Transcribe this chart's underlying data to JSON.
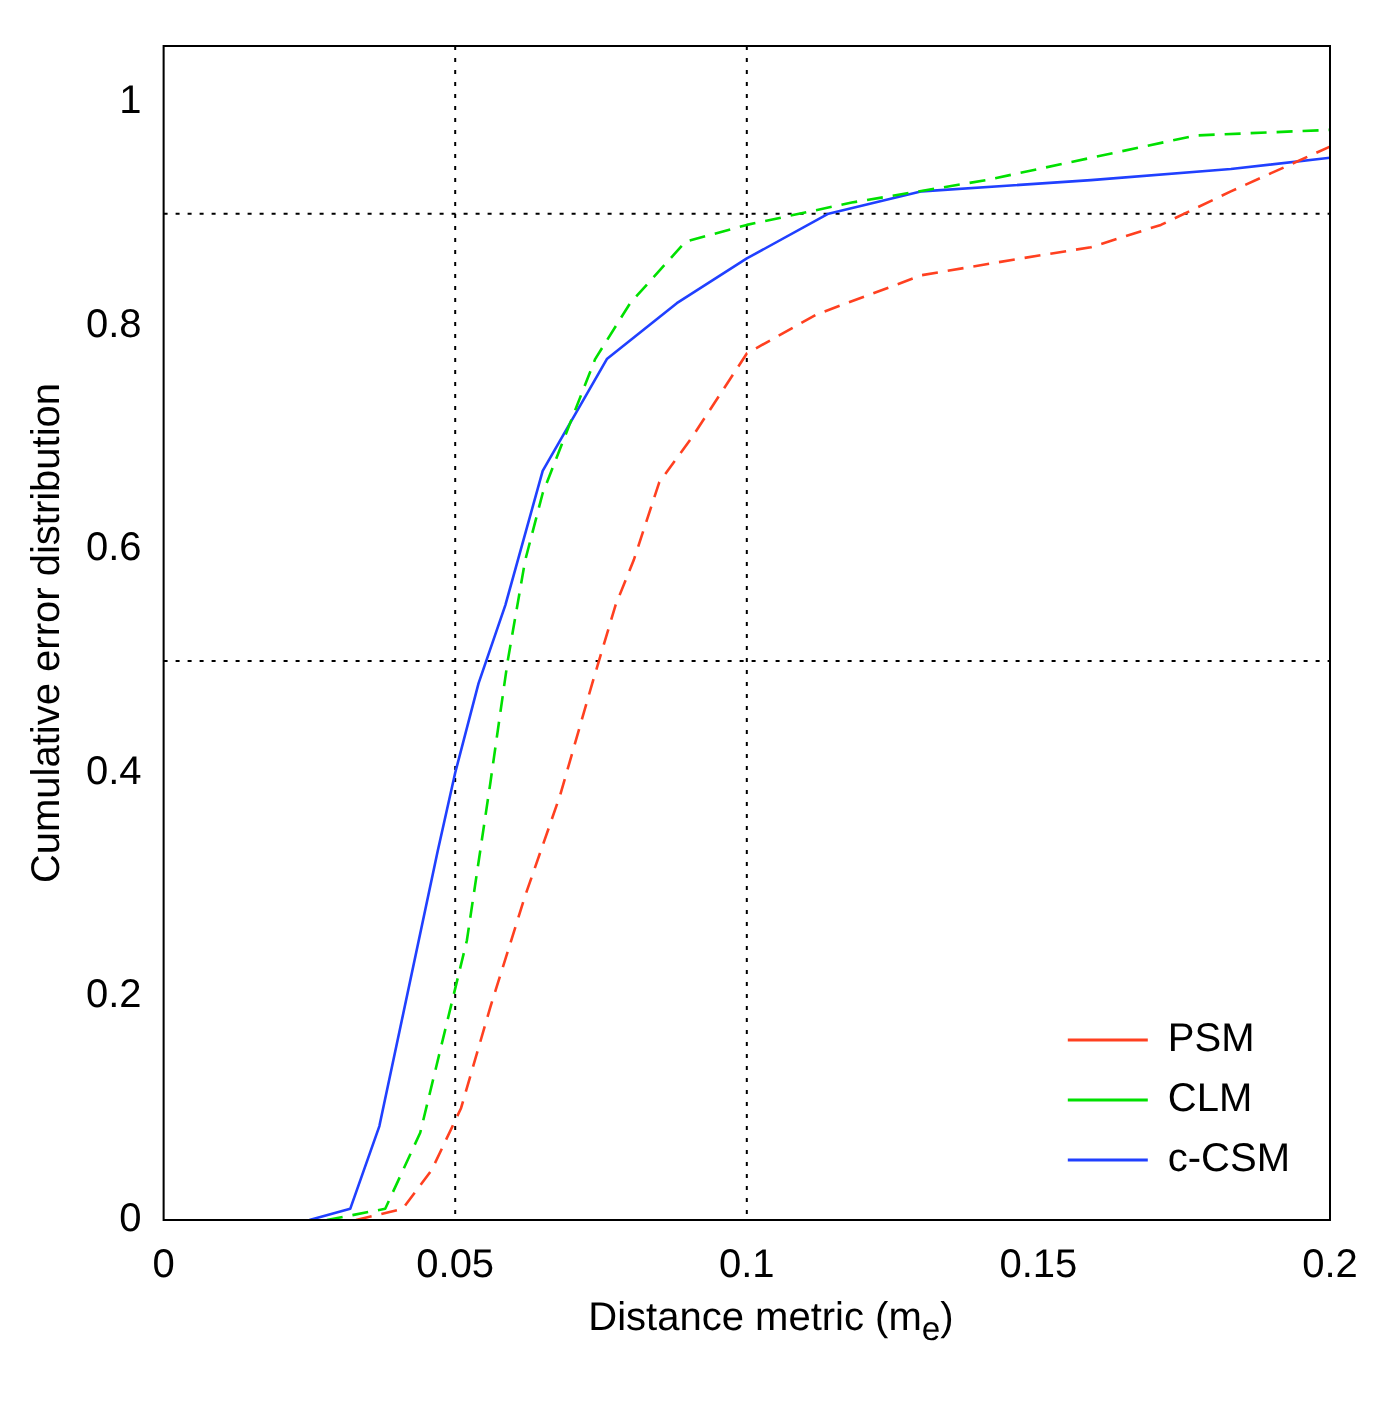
{
  "chart_data": {
    "type": "line",
    "xlabel": "Distance metric (m$_{e}$)",
    "ylabel": "Cumulative error distribution",
    "xlim": [
      0,
      0.2
    ],
    "xticks": [
      0,
      0.05,
      0.1,
      0.15,
      0.2
    ],
    "ylim": [
      0,
      1.05
    ],
    "yticks": [
      0,
      0.2,
      0.4,
      0.6,
      0.8,
      1
    ],
    "grid": false,
    "legend": "bottom right",
    "marker": "none",
    "ref_lines": [
      {
        "axis": "x",
        "value": 0.05,
        "line_style": "dotted",
        "color": "#000000"
      },
      {
        "axis": "x",
        "value": 0.1,
        "line_style": "dotted",
        "color": "#000000"
      },
      {
        "axis": "y",
        "value": 0.5,
        "line_style": "dotted",
        "color": "#000000"
      },
      {
        "axis": "y",
        "value": 0.9,
        "line_style": "dotted",
        "color": "#000000"
      }
    ],
    "series": [
      {
        "name": "PSM",
        "color": "#ff4020",
        "line_style": "dashed",
        "x": [
          0.033,
          0.041,
          0.046,
          0.051,
          0.056,
          0.062,
          0.068,
          0.0735,
          0.0775,
          0.0806,
          0.085,
          0.0906,
          0.1,
          0.112,
          0.13,
          0.147,
          0.159,
          0.171,
          0.183,
          0.2
        ],
        "values": [
          0,
          0.01,
          0.045,
          0.1,
          0.19,
          0.29,
          0.38,
          0.48,
          0.55,
          0.59,
          0.66,
          0.7,
          0.775,
          0.81,
          0.845,
          0.86,
          0.87,
          0.89,
          0.92,
          0.96
        ]
      },
      {
        "name": "CLM",
        "color": "#00e000",
        "line_style": "dashed",
        "x": [
          0.028,
          0.038,
          0.044,
          0.052,
          0.056,
          0.059,
          0.062,
          0.065,
          0.074,
          0.08,
          0.0895,
          0.1,
          0.118,
          0.141,
          0.159,
          0.177,
          0.2
        ],
        "values": [
          0,
          0.01,
          0.078,
          0.25,
          0.39,
          0.5,
          0.59,
          0.65,
          0.77,
          0.82,
          0.875,
          0.89,
          0.91,
          0.93,
          0.95,
          0.97,
          0.975
        ]
      },
      {
        "name": "c-CSM",
        "color": "#2040ff",
        "line_style": "solid",
        "x": [
          0.025,
          0.032,
          0.037,
          0.047,
          0.05,
          0.054,
          0.0586,
          0.065,
          0.076,
          0.088,
          0.1,
          0.114,
          0.13,
          0.159,
          0.183,
          0.2
        ],
        "values": [
          0,
          0.01,
          0.084,
          0.33,
          0.4,
          0.48,
          0.55,
          0.67,
          0.77,
          0.82,
          0.86,
          0.9,
          0.92,
          0.93,
          0.94,
          0.95
        ]
      }
    ]
  }
}
